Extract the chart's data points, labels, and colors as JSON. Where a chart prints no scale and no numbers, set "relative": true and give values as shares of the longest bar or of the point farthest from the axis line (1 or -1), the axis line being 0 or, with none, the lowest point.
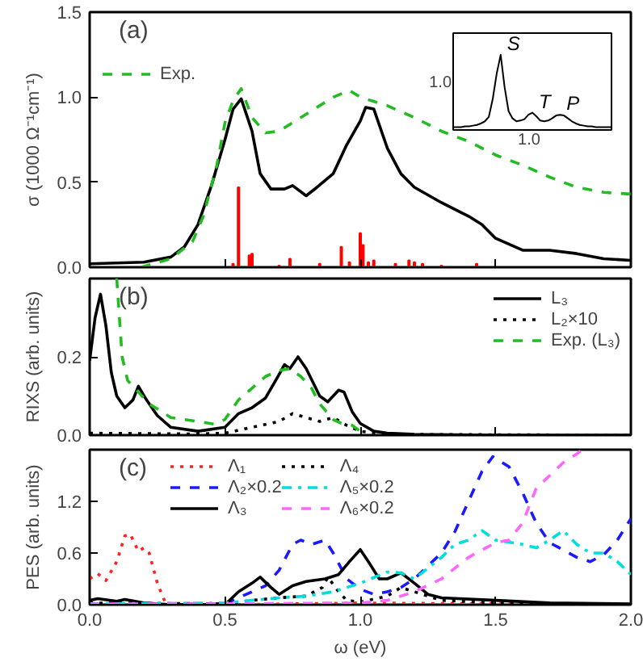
{
  "chart_data": [
    {
      "type": "line",
      "ylabel": "σ (1000 Ω⁻¹cm⁻¹)",
      "annotations": [
        "(a)"
      ],
      "xlim": [
        0,
        2
      ],
      "ylim": [
        0,
        1.5
      ],
      "xticks": [
        0,
        0.5,
        1,
        1.5,
        2
      ],
      "yticks": [
        {
          "value": 0,
          "label": "0.0"
        },
        {
          "value": 0.5,
          "label": "0.5"
        },
        {
          "value": 1,
          "label": "1.0"
        },
        {
          "value": 1.5,
          "label": "1.5"
        }
      ],
      "tick_labels": "y",
      "legend": "top left",
      "series": [
        {
          "color": "#000000",
          "x": [
            0,
            0.2,
            0.3,
            0.35,
            0.4,
            0.45,
            0.5,
            0.53,
            0.56,
            0.6,
            0.63,
            0.67,
            0.72,
            0.75,
            0.8,
            0.84,
            0.9,
            0.95,
            1.0,
            1.02,
            1.05,
            1.1,
            1.15,
            1.2,
            1.3,
            1.4,
            1.45,
            1.5,
            1.6,
            1.7,
            1.8,
            1.9,
            2.0
          ],
          "values": [
            0.02,
            0.03,
            0.06,
            0.12,
            0.25,
            0.48,
            0.75,
            0.93,
            0.99,
            0.8,
            0.55,
            0.46,
            0.46,
            0.48,
            0.42,
            0.47,
            0.55,
            0.72,
            0.86,
            0.94,
            0.93,
            0.7,
            0.55,
            0.47,
            0.38,
            0.3,
            0.25,
            0.17,
            0.1,
            0.1,
            0.08,
            0.05,
            0.04
          ]
        },
        {
          "name": "Exp.",
          "color": "#22bb22",
          "line_style": "dashed",
          "x": [
            0.19,
            0.3,
            0.38,
            0.42,
            0.47,
            0.5,
            0.53,
            0.56,
            0.6,
            0.65,
            0.7,
            0.8,
            0.9,
            0.96,
            1.0,
            1.1,
            1.2,
            1.3,
            1.4,
            1.5,
            1.6,
            1.7,
            1.8,
            1.9,
            2.0
          ],
          "values": [
            0.0,
            0.05,
            0.15,
            0.3,
            0.6,
            0.85,
            0.98,
            1.05,
            0.88,
            0.79,
            0.8,
            0.9,
            1.0,
            1.04,
            1.0,
            0.95,
            0.88,
            0.8,
            0.74,
            0.66,
            0.6,
            0.53,
            0.47,
            0.44,
            0.43
          ]
        },
        {
          "type": "bar",
          "color": "#ff0000",
          "x": [
            0.53,
            0.55,
            0.59,
            0.6,
            0.7,
            0.74,
            0.85,
            0.93,
            0.96,
            1.0,
            1.01,
            1.03,
            1.05,
            1.13,
            1.18,
            1.2,
            1.23,
            1.3,
            1.43
          ],
          "values": [
            0.02,
            0.47,
            0.07,
            0.08,
            0.01,
            0.05,
            0.02,
            0.12,
            0.03,
            0.2,
            0.13,
            0.03,
            0.04,
            0.02,
            0.04,
            0.03,
            0.02,
            0.01,
            0.02
          ]
        }
      ]
    },
    {
      "type": "line",
      "relative": true,
      "annotations": [
        "1.0",
        "1.0",
        "S",
        "T",
        "P"
      ],
      "categories": [
        null,
        null,
        null,
        null,
        null,
        null,
        null,
        null,
        null,
        null,
        null,
        null,
        null,
        null,
        null,
        null,
        null,
        null,
        null,
        null,
        null,
        null,
        null,
        null,
        null,
        null,
        null,
        null,
        null,
        null,
        null,
        null,
        null,
        null,
        null,
        null,
        null,
        null,
        null,
        null,
        null
      ],
      "series": [
        {
          "color": "#000000",
          "values": [
            0,
            0,
            0,
            0.01,
            0.01,
            0.02,
            0.03,
            0.05,
            0.08,
            0.14,
            0.39,
            0.74,
            1,
            0.55,
            0.22,
            0.12,
            0.08,
            0.09,
            0.11,
            0.17,
            0.2,
            0.15,
            0.09,
            0.08,
            0.09,
            0.12,
            0.16,
            0.17,
            0.16,
            0.12,
            0.08,
            0.05,
            0.03,
            0.02,
            0.01,
            0.01,
            0,
            0,
            0,
            0,
            0
          ]
        }
      ]
    },
    {
      "type": "line",
      "ylabel": "RIXS (arb. units)",
      "annotations": [
        "(b)"
      ],
      "xlim": [
        0,
        2
      ],
      "ylim": [
        0,
        0.4
      ],
      "xticks": [
        0,
        0.5,
        1,
        1.5,
        2
      ],
      "yticks": [
        {
          "value": 0,
          "label": "0.0"
        },
        0.2
      ],
      "tick_labels": "y",
      "legend": "top right",
      "series": [
        {
          "name": "L₃",
          "color": "#000000",
          "x": [
            0,
            0.02,
            0.04,
            0.06,
            0.08,
            0.1,
            0.13,
            0.16,
            0.18,
            0.21,
            0.25,
            0.3,
            0.4,
            0.5,
            0.55,
            0.6,
            0.65,
            0.7,
            0.72,
            0.74,
            0.77,
            0.8,
            0.85,
            0.88,
            0.92,
            0.94,
            0.97,
            1.0,
            1.05,
            1.1,
            1.2,
            1.5,
            2.0
          ],
          "values": [
            0.19,
            0.3,
            0.36,
            0.28,
            0.16,
            0.1,
            0.07,
            0.09,
            0.125,
            0.09,
            0.05,
            0.02,
            0.01,
            0.02,
            0.055,
            0.07,
            0.095,
            0.155,
            0.18,
            0.17,
            0.2,
            0.17,
            0.1,
            0.085,
            0.115,
            0.11,
            0.06,
            0.03,
            0.01,
            0.005,
            0.002,
            0,
            0
          ]
        },
        {
          "name": "L₂×10",
          "color": "#000000",
          "line_style": "dotted",
          "x": [
            0,
            0.4,
            0.5,
            0.6,
            0.7,
            0.75,
            0.8,
            0.85,
            0.9,
            0.95,
            1.0,
            1.1,
            2.0
          ],
          "values": [
            0.005,
            0.003,
            0.005,
            0.02,
            0.035,
            0.055,
            0.045,
            0.035,
            0.045,
            0.025,
            0.01,
            0.002,
            0
          ]
        },
        {
          "name": "Exp. (L₃)",
          "color": "#22bb22",
          "line_style": "dashed",
          "x": [
            0.1,
            0.12,
            0.14,
            0.18,
            0.22,
            0.3,
            0.4,
            0.46,
            0.5,
            0.55,
            0.6,
            0.65,
            0.7,
            0.74,
            0.78,
            0.82,
            0.85,
            0.9,
            0.93,
            0.97,
            1.0
          ],
          "values": [
            0.4,
            0.2,
            0.14,
            0.11,
            0.08,
            0.045,
            0.035,
            0.028,
            0.04,
            0.09,
            0.12,
            0.15,
            0.165,
            0.17,
            0.15,
            0.12,
            0.08,
            0.04,
            0.03,
            0.025,
            0.01
          ]
        }
      ]
    },
    {
      "type": "line",
      "xlabel": "ω (eV)",
      "ylabel": "PES (arb. units)",
      "annotations": [
        "(c)"
      ],
      "xlim": [
        0,
        2
      ],
      "ylim": [
        0,
        1.8
      ],
      "xticks": [
        {
          "value": 0,
          "label": "0.0"
        },
        0.5,
        {
          "value": 1,
          "label": "1.0"
        },
        1.5,
        {
          "value": 2,
          "label": "2.0"
        }
      ],
      "yticks": [
        {
          "value": 0,
          "label": "0.0"
        },
        0.6,
        1.2
      ],
      "legend": "top left",
      "series": [
        {
          "name": "Λ₁",
          "color": "#ff2222",
          "line_style": "dotted",
          "x": [
            0,
            0.03,
            0.06,
            0.1,
            0.13,
            0.15,
            0.18,
            0.2,
            0.22,
            0.25,
            0.28,
            0.3,
            0.5,
            1.0,
            2.0
          ],
          "values": [
            0.3,
            0.36,
            0.28,
            0.5,
            0.8,
            0.82,
            0.62,
            0.66,
            0.6,
            0.25,
            0.02,
            0,
            0,
            0.02,
            0
          ]
        },
        {
          "name": "Λ₂×0.2",
          "color": "#1a1aff",
          "line_style": "dashed",
          "x": [
            0,
            0.5,
            0.55,
            0.6,
            0.65,
            0.7,
            0.75,
            0.78,
            0.82,
            0.87,
            0.9,
            0.95,
            1.0,
            1.05,
            1.1,
            1.15,
            1.2,
            1.3,
            1.35,
            1.4,
            1.45,
            1.49,
            1.55,
            1.6,
            1.65,
            1.7,
            1.8,
            1.85,
            1.9,
            1.95,
            2.0
          ],
          "values": [
            0.01,
            0.01,
            0.08,
            0.15,
            0.22,
            0.4,
            0.7,
            0.75,
            0.7,
            0.75,
            0.6,
            0.3,
            0.18,
            0.12,
            0.15,
            0.2,
            0.3,
            0.6,
            0.85,
            1.2,
            1.55,
            1.72,
            1.6,
            1.3,
            0.95,
            0.72,
            0.55,
            0.5,
            0.58,
            0.75,
            1.0
          ]
        },
        {
          "name": "Λ₃",
          "color": "#000000",
          "x": [
            0,
            0.03,
            0.1,
            0.13,
            0.2,
            0.3,
            0.5,
            0.55,
            0.6,
            0.63,
            0.67,
            0.7,
            0.75,
            0.8,
            0.87,
            0.92,
            0.96,
            1.0,
            1.03,
            1.07,
            1.1,
            1.15,
            1.2,
            1.25,
            1.3,
            1.5,
            1.7,
            2.0
          ],
          "values": [
            0.05,
            0.07,
            0.04,
            0.06,
            0.02,
            0,
            0,
            0.15,
            0.25,
            0.32,
            0.2,
            0.12,
            0.22,
            0.27,
            0.3,
            0.35,
            0.5,
            0.64,
            0.5,
            0.3,
            0.3,
            0.37,
            0.25,
            0.12,
            0.08,
            0.05,
            0.02,
            0.01
          ]
        },
        {
          "name": "Λ₄",
          "color": "#000000",
          "line_style": "dotted",
          "x": [
            0,
            0.5,
            0.6,
            0.7,
            0.8,
            0.86,
            0.88,
            0.92,
            0.95,
            1.0,
            1.1,
            1.15,
            1.2,
            1.3,
            1.5,
            2.0
          ],
          "values": [
            0.02,
            0.01,
            0.05,
            0.08,
            0.1,
            0.2,
            0.32,
            0.15,
            0.05,
            0.03,
            0.1,
            0.2,
            0.15,
            0.05,
            0.02,
            0
          ]
        },
        {
          "name": "Λ₅×0.2",
          "color": "#00dddd",
          "line_style": "dashdot",
          "x": [
            0,
            0.5,
            0.6,
            0.7,
            0.8,
            0.9,
            1.0,
            1.1,
            1.15,
            1.2,
            1.3,
            1.35,
            1.4,
            1.45,
            1.5,
            1.6,
            1.65,
            1.7,
            1.75,
            1.8,
            1.85,
            1.9,
            1.95,
            2.0
          ],
          "values": [
            0.01,
            0.02,
            0.05,
            0.08,
            0.1,
            0.15,
            0.25,
            0.38,
            0.37,
            0.3,
            0.55,
            0.7,
            0.75,
            0.86,
            0.75,
            0.7,
            0.66,
            0.75,
            0.86,
            0.7,
            0.6,
            0.6,
            0.5,
            0.35
          ]
        },
        {
          "name": "Λ₆×0.2",
          "color": "#ff66ff",
          "line_style": "dashed",
          "x": [
            0,
            0.5,
            1.0,
            1.1,
            1.2,
            1.3,
            1.4,
            1.5,
            1.55,
            1.6,
            1.65,
            1.7,
            1.75,
            1.8,
            1.82
          ],
          "values": [
            0.01,
            0.01,
            0.02,
            0.05,
            0.15,
            0.3,
            0.55,
            0.72,
            0.75,
            0.95,
            1.35,
            1.5,
            1.65,
            1.75,
            1.8
          ]
        }
      ]
    }
  ]
}
